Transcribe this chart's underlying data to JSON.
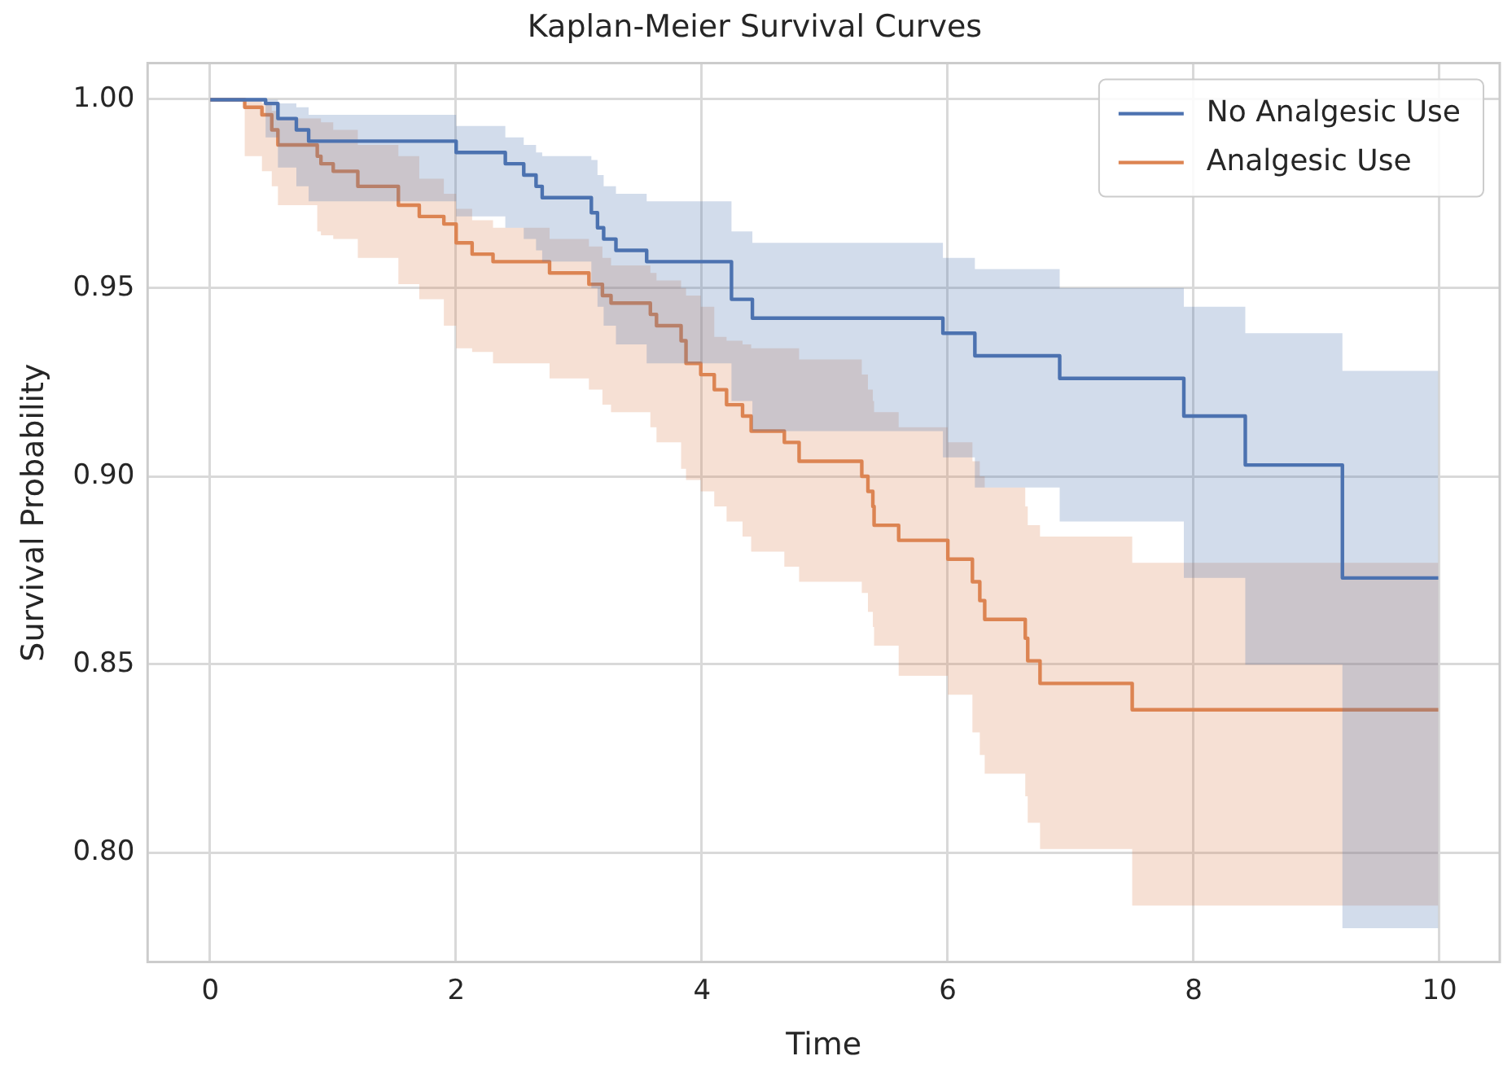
{
  "chart_data": {
    "type": "step",
    "title": "Kaplan-Meier Survival Curves",
    "xlabel": "Time",
    "ylabel": "Survival Probability",
    "xlim": [
      -0.51,
      10.49
    ],
    "xticks": [
      0,
      2,
      4,
      6,
      8,
      10
    ],
    "ylim": [
      0.771,
      1.0097
    ],
    "yticks": [
      {
        "value": 0.8,
        "label": "0.80"
      },
      {
        "value": 0.85,
        "label": "0.85"
      },
      {
        "value": 0.9,
        "label": "0.90"
      },
      {
        "value": 0.95,
        "label": "0.95"
      },
      {
        "value": 1.0,
        "label": "1.00"
      }
    ],
    "grid": true,
    "legend": "top right",
    "line_style": "solid",
    "marker": "none",
    "series": [
      {
        "name": "No Analgesic Use",
        "color": "#4c72b0",
        "x": [
          0,
          0.45,
          0.55,
          0.7,
          0.8,
          2.0,
          2.4,
          2.55,
          2.65,
          2.7,
          3.1,
          3.15,
          3.2,
          3.3,
          3.55,
          4.24,
          4.41,
          5.96,
          6.22,
          6.91,
          7.92,
          8.42,
          9.21,
          9.99
        ],
        "values": [
          1,
          0.999,
          0.995,
          0.992,
          0.989,
          0.986,
          0.983,
          0.98,
          0.977,
          0.974,
          0.97,
          0.966,
          0.963,
          0.96,
          0.957,
          0.947,
          0.942,
          0.938,
          0.932,
          0.926,
          0.916,
          0.903,
          0.873,
          0.873
        ],
        "upper": [
          1,
          1,
          0.999,
          0.998,
          0.996,
          0.993,
          0.99,
          0.988,
          0.986,
          0.985,
          0.984,
          0.98,
          0.977,
          0.975,
          0.973,
          0.965,
          0.962,
          0.958,
          0.955,
          0.95,
          0.945,
          0.938,
          0.928,
          0.928
        ],
        "lower": [
          1,
          0.99,
          0.982,
          0.977,
          0.973,
          0.969,
          0.966,
          0.963,
          0.96,
          0.957,
          0.95,
          0.945,
          0.94,
          0.935,
          0.93,
          0.92,
          0.912,
          0.905,
          0.897,
          0.888,
          0.873,
          0.85,
          0.78,
          0.78
        ]
      },
      {
        "name": "Analgesic Use",
        "color": "#dd8452",
        "x": [
          0,
          0.28,
          0.42,
          0.5,
          0.55,
          0.87,
          0.9,
          1.0,
          1.2,
          1.53,
          1.7,
          1.9,
          2.0,
          2.13,
          2.3,
          2.76,
          3.08,
          3.19,
          3.26,
          3.58,
          3.63,
          3.83,
          3.87,
          3.99,
          4.1,
          4.2,
          4.33,
          4.4,
          4.67,
          4.79,
          5.3,
          5.35,
          5.39,
          5.4,
          5.6,
          6.0,
          6.2,
          6.26,
          6.3,
          6.63,
          6.65,
          6.75,
          7.5,
          9.99
        ],
        "values": [
          1,
          0.998,
          0.996,
          0.992,
          0.988,
          0.985,
          0.983,
          0.981,
          0.977,
          0.972,
          0.969,
          0.967,
          0.962,
          0.959,
          0.957,
          0.954,
          0.951,
          0.948,
          0.946,
          0.943,
          0.94,
          0.936,
          0.93,
          0.927,
          0.923,
          0.919,
          0.916,
          0.912,
          0.909,
          0.904,
          0.9,
          0.896,
          0.892,
          0.887,
          0.883,
          0.878,
          0.872,
          0.867,
          0.862,
          0.857,
          0.851,
          0.845,
          0.838,
          0.838
        ],
        "upper": [
          1,
          1,
          0.999,
          0.997,
          0.995,
          0.995,
          0.994,
          0.992,
          0.988,
          0.985,
          0.979,
          0.975,
          0.971,
          0.968,
          0.966,
          0.963,
          0.961,
          0.958,
          0.956,
          0.954,
          0.952,
          0.95,
          0.948,
          0.945,
          0.937,
          0.936,
          0.935,
          0.934,
          0.934,
          0.931,
          0.927,
          0.923,
          0.92,
          0.917,
          0.913,
          0.909,
          0.904,
          0.9,
          0.897,
          0.892,
          0.887,
          0.884,
          0.877,
          0.877
        ],
        "lower": [
          1,
          0.985,
          0.981,
          0.977,
          0.972,
          0.965,
          0.964,
          0.963,
          0.958,
          0.951,
          0.947,
          0.94,
          0.934,
          0.933,
          0.93,
          0.926,
          0.923,
          0.919,
          0.917,
          0.913,
          0.909,
          0.902,
          0.899,
          0.896,
          0.892,
          0.888,
          0.884,
          0.88,
          0.876,
          0.872,
          0.869,
          0.864,
          0.86,
          0.855,
          0.847,
          0.842,
          0.832,
          0.826,
          0.821,
          0.815,
          0.808,
          0.801,
          0.786,
          0.786
        ]
      }
    ]
  }
}
